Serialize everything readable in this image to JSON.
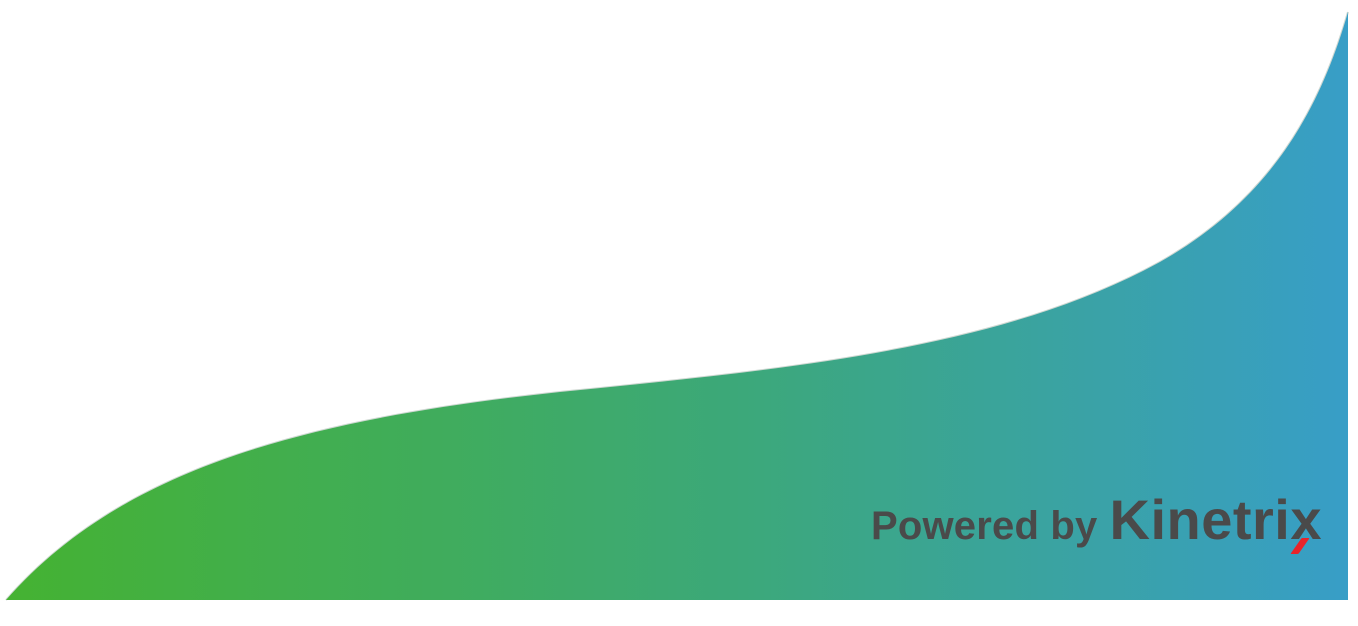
{
  "branding": {
    "prefix": "Powered by",
    "logo_text": "Kinetrix",
    "logo_accent_color": "#e8242a",
    "text_color": "#4a4a4a"
  },
  "background": {
    "gradient_start_color": "#45b232",
    "gradient_end_color": "#389ec7",
    "base_color": "#ffffff"
  }
}
